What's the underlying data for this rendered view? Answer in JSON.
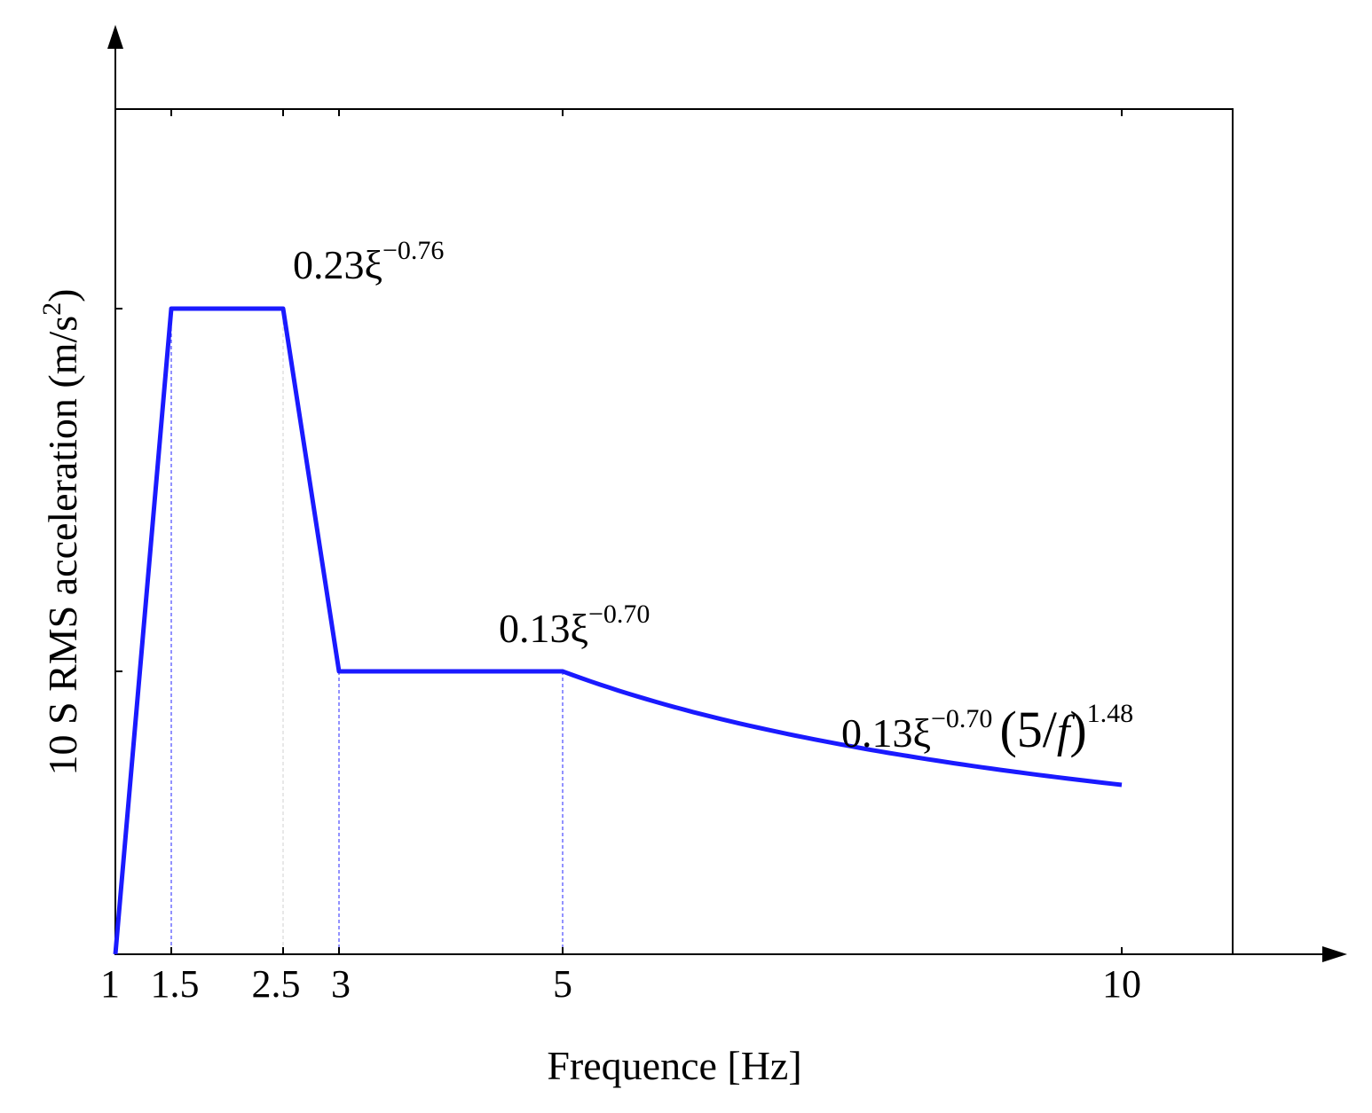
{
  "chart_data": {
    "type": "line",
    "xlabel": "Frequence [Hz]",
    "ylabel": "10 S RMS acceleration (m/s",
    "ylabel_sup": "2",
    "ylabel_end": ")",
    "xlim": [
      0,
      10
    ],
    "ylim": [
      0,
      0.3
    ],
    "x_ticks": [
      {
        "value": 1,
        "label": "1"
      },
      {
        "value": 1.5,
        "label": "1.5"
      },
      {
        "value": 2.5,
        "label": "2.5"
      },
      {
        "value": 3,
        "label": "3"
      },
      {
        "value": 5,
        "label": "5"
      },
      {
        "value": 10,
        "label": "10"
      }
    ],
    "y_ticks": [
      0.13,
      0.23
    ],
    "series": [
      {
        "color": "#1a1aff",
        "segments": [
          {
            "kind": "line",
            "x": [
              1,
              1.5
            ],
            "y": [
              0,
              0.23
            ]
          },
          {
            "kind": "line",
            "x": [
              1.5,
              2.5
            ],
            "y": [
              0.23,
              0.23
            ]
          },
          {
            "kind": "line",
            "x": [
              2.5,
              3
            ],
            "y": [
              0.23,
              0.13
            ]
          },
          {
            "kind": "line",
            "x": [
              3,
              5
            ],
            "y": [
              0.13,
              0.13
            ]
          },
          {
            "kind": "power",
            "x": [
              5,
              10
            ],
            "coef": 0.13,
            "base": 5,
            "exponent": 1.48
          }
        ]
      }
    ],
    "guides": [
      {
        "x": 1.5,
        "y": 0.23
      },
      {
        "x": 2.5,
        "y": 0.23
      },
      {
        "x": 3,
        "y": 0.13
      },
      {
        "x": 5,
        "y": 0.13
      }
    ],
    "annotations": [
      {
        "id": "peak",
        "parts": [
          "0.23ξ",
          "−0.76"
        ]
      },
      {
        "id": "mid",
        "parts": [
          "0.13ξ",
          "−0.70"
        ]
      },
      {
        "id": "tail",
        "parts": [
          "0.13ξ",
          "−0.70",
          "(5/",
          "f",
          ")",
          "1.48"
        ]
      }
    ]
  }
}
